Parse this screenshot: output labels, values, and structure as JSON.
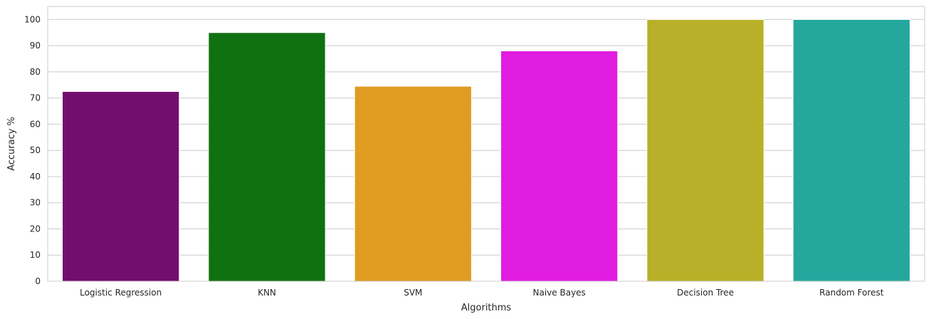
{
  "chart_data": {
    "type": "bar",
    "categories": [
      "Logistic Regression",
      "KNN",
      "SVM",
      "Naive Bayes",
      "Decision Tree",
      "Random Forest"
    ],
    "values": [
      72.5,
      95.0,
      74.5,
      88.0,
      100.0,
      100.0
    ],
    "colors": [
      "#730e6f",
      "#107111",
      "#e09b21",
      "#e01de0",
      "#b8b028",
      "#24a79d"
    ],
    "title": "",
    "xlabel": "Algorithms",
    "ylabel": "Accuracy %",
    "ylim": [
      0,
      105
    ],
    "yticks": [
      0,
      10,
      20,
      30,
      40,
      50,
      60,
      70,
      80,
      90,
      100
    ],
    "grid": "horizontal",
    "legend": "none"
  }
}
